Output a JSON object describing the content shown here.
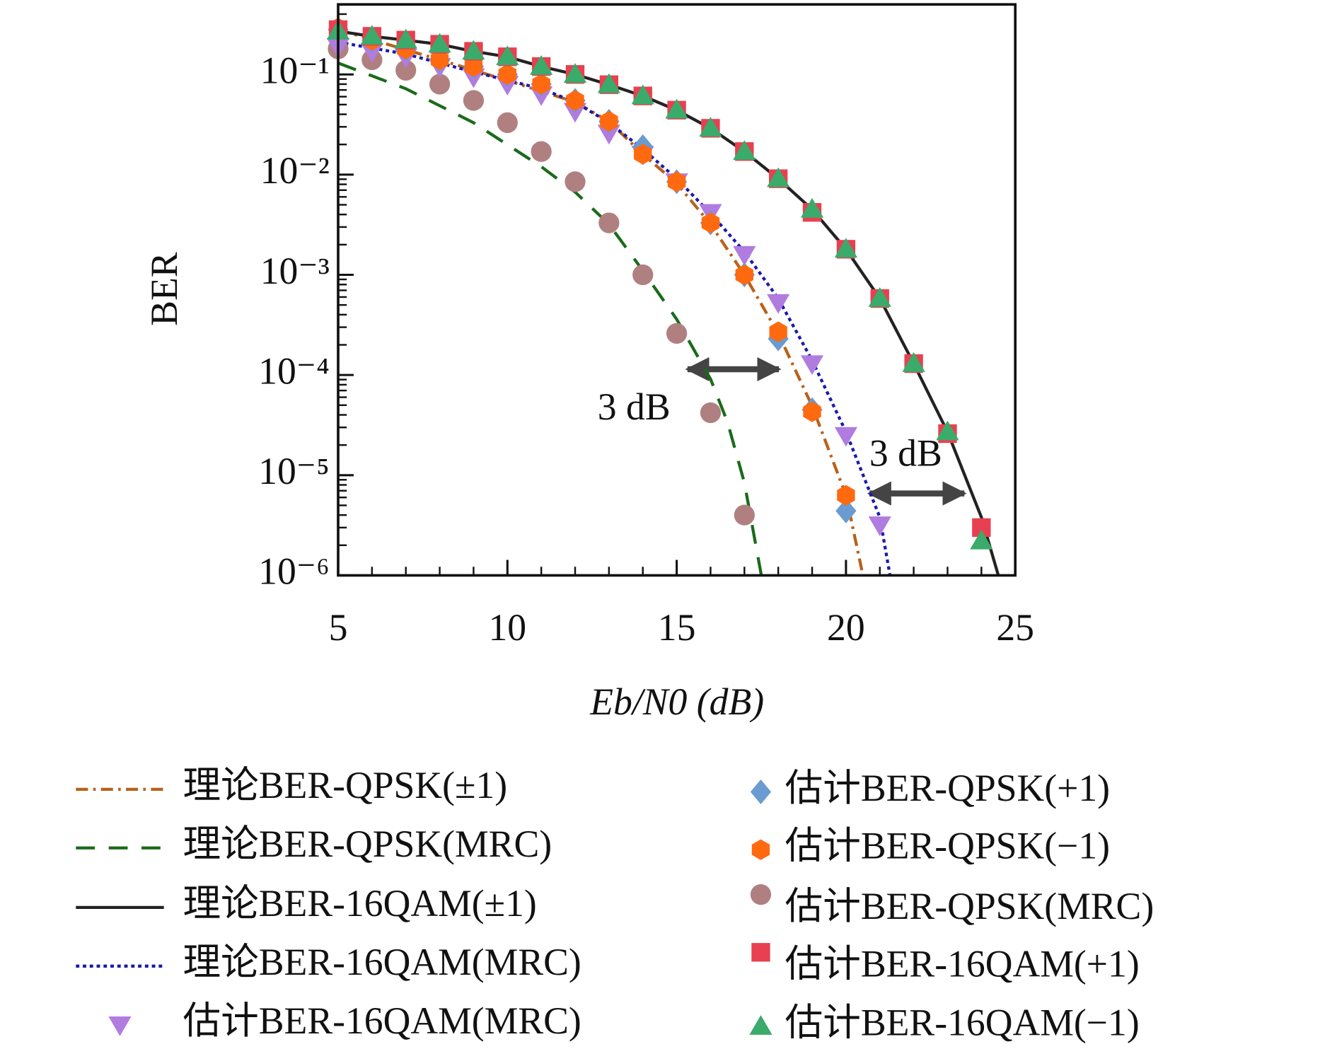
{
  "chart_data": {
    "type": "line",
    "xlabel": "Eb/N0 (dB)",
    "ylabel": "BER",
    "xlim": [
      5,
      25
    ],
    "xticks": [
      5,
      10,
      15,
      20,
      25
    ],
    "ylim": [
      1e-06,
      0.5
    ],
    "yscale": "log",
    "yticks": [
      {
        "value": 0.1,
        "label": "10⁻¹"
      },
      {
        "value": 0.01,
        "label": "10⁻²"
      },
      {
        "value": 0.001,
        "label": "10⁻³"
      },
      {
        "value": 0.0001,
        "label": "10⁻⁴"
      },
      {
        "value": 1e-05,
        "label": "10⁻⁵"
      },
      {
        "value": 1e-06,
        "label": "10⁻⁶"
      }
    ],
    "annotations": [
      "3 dB",
      "3 dB"
    ],
    "series": [
      {
        "name": "理论BER-QPSK(±1)",
        "color": "#b8621b",
        "line_style": "dashdot",
        "x": [
          5,
          8,
          10,
          12,
          13,
          14,
          15,
          16,
          17,
          18,
          19,
          20,
          20.5
        ],
        "values": [
          0.28,
          0.14,
          0.087,
          0.053,
          0.034,
          0.016,
          0.0082,
          0.0032,
          0.001,
          0.00026,
          4.9e-05,
          6.3e-06,
          1e-06
        ]
      },
      {
        "name": "理论BER-QPSK(MRC)",
        "color": "#1a6b1a",
        "line_style": "dashed",
        "x": [
          5,
          7,
          9,
          11,
          12,
          13,
          14,
          15,
          16,
          16.5,
          17,
          17.5
        ],
        "values": [
          0.13,
          0.072,
          0.033,
          0.012,
          0.0067,
          0.0032,
          0.0011,
          0.00036,
          9.1e-05,
          3.4e-05,
          8.4e-06,
          1e-06
        ]
      },
      {
        "name": "理论BER-16QAM(±1)",
        "color": "#222222",
        "line_style": "solid",
        "x": [
          5,
          6,
          7,
          8,
          9,
          10,
          11,
          12,
          13,
          14,
          15,
          16,
          17,
          18,
          19,
          20,
          21,
          22,
          23,
          24,
          24.5
        ],
        "values": [
          0.27,
          0.24,
          0.22,
          0.2,
          0.17,
          0.15,
          0.12,
          0.1,
          0.079,
          0.061,
          0.044,
          0.029,
          0.017,
          0.0091,
          0.0045,
          0.0018,
          0.00058,
          0.00013,
          2.7e-05,
          3.8e-06,
          1e-06
        ]
      },
      {
        "name": "理论BER-16QAM(MRC)",
        "color": "#1a1aaa",
        "line_style": "dotted",
        "x": [
          5,
          7,
          9,
          11,
          12,
          13,
          14,
          15,
          16,
          17,
          18,
          19,
          20,
          21,
          21.3
        ],
        "values": [
          0.21,
          0.16,
          0.106,
          0.072,
          0.053,
          0.033,
          0.018,
          0.0091,
          0.0041,
          0.0017,
          0.00058,
          0.00014,
          2.7e-05,
          3.8e-06,
          1e-06
        ]
      },
      {
        "name": "估计BER-16QAM(MRC)",
        "color": "#b07ce0",
        "marker": "triangle-down",
        "x": [
          5,
          6,
          7,
          8,
          9,
          10,
          11,
          12,
          13,
          14,
          15,
          16,
          17,
          18,
          19,
          20,
          21
        ],
        "values": [
          0.19,
          0.17,
          0.15,
          0.12,
          0.095,
          0.08,
          0.063,
          0.043,
          0.026,
          0.016,
          0.0085,
          0.0042,
          0.0016,
          0.00053,
          0.00013,
          2.5e-05,
          3.2e-06
        ]
      },
      {
        "name": "估计BER-QPSK(+1)",
        "color": "#6a9bd1",
        "marker": "diamond",
        "x": [
          5,
          6,
          7,
          8,
          9,
          10,
          11,
          12,
          13,
          14,
          15,
          16,
          17,
          18,
          19,
          20
        ],
        "values": [
          0.28,
          0.22,
          0.18,
          0.14,
          0.12,
          0.1,
          0.08,
          0.055,
          0.034,
          0.019,
          0.0085,
          0.0033,
          0.001,
          0.00023,
          4.5e-05,
          4.4e-06
        ]
      },
      {
        "name": "估计BER-QPSK(−1)",
        "color": "#ff6a10",
        "marker": "hexagon",
        "x": [
          5,
          6,
          7,
          8,
          9,
          10,
          11,
          12,
          13,
          14,
          15,
          16,
          17,
          18,
          19,
          20
        ],
        "values": [
          0.29,
          0.22,
          0.18,
          0.14,
          0.12,
          0.1,
          0.08,
          0.055,
          0.034,
          0.016,
          0.0085,
          0.0033,
          0.001,
          0.00027,
          4.3e-05,
          6.3e-06
        ]
      },
      {
        "name": "估计BER-QPSK(MRC)",
        "color": "#b08080",
        "marker": "circle",
        "x": [
          5,
          6,
          7,
          8,
          9,
          10,
          11,
          12,
          13,
          14,
          15,
          16,
          17
        ],
        "values": [
          0.18,
          0.14,
          0.11,
          0.08,
          0.055,
          0.033,
          0.017,
          0.0085,
          0.0033,
          0.001,
          0.00026,
          4.2e-05,
          4e-06
        ]
      },
      {
        "name": "估计BER-16QAM(+1)",
        "color": "#e84050",
        "marker": "square",
        "x": [
          5,
          6,
          7,
          8,
          9,
          10,
          11,
          12,
          13,
          14,
          15,
          16,
          17,
          18,
          19,
          20,
          21,
          22,
          23,
          24
        ],
        "values": [
          0.28,
          0.24,
          0.22,
          0.2,
          0.17,
          0.15,
          0.12,
          0.1,
          0.079,
          0.061,
          0.044,
          0.029,
          0.017,
          0.0091,
          0.0042,
          0.0018,
          0.00058,
          0.00013,
          2.6e-05,
          3e-06
        ]
      },
      {
        "name": "估计BER-16QAM(−1)",
        "color": "#3aab6a",
        "marker": "triangle-up",
        "x": [
          5,
          6,
          7,
          8,
          9,
          10,
          11,
          12,
          13,
          14,
          15,
          16,
          17,
          18,
          19,
          20,
          21,
          22,
          23,
          24
        ],
        "values": [
          0.27,
          0.24,
          0.22,
          0.2,
          0.17,
          0.15,
          0.12,
          0.1,
          0.079,
          0.061,
          0.044,
          0.029,
          0.017,
          0.0091,
          0.0045,
          0.0018,
          0.00058,
          0.00013,
          2.7e-05,
          2.2e-06
        ]
      }
    ]
  }
}
